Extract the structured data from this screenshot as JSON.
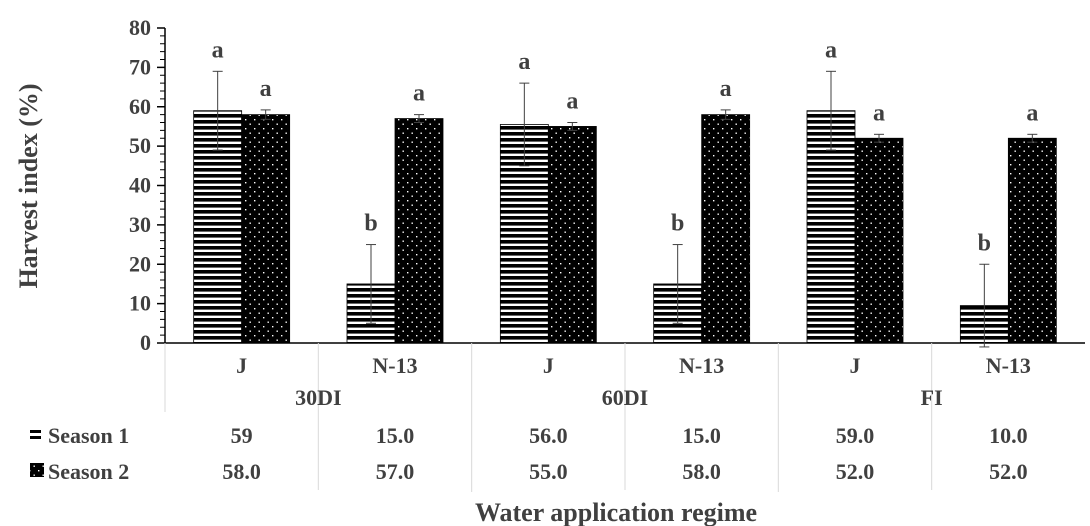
{
  "chart_data": {
    "type": "bar",
    "xlabel": "Water application regime",
    "ylabel": "Harvest index (%)",
    "ylim": [
      0,
      80
    ],
    "y_ticks": [
      0,
      10,
      20,
      30,
      40,
      50,
      60,
      70,
      80
    ],
    "groups": [
      "30DI",
      "60DI",
      "FI"
    ],
    "categories": [
      "J",
      "N-13",
      "J",
      "N-13",
      "J",
      "N-13"
    ],
    "series": [
      {
        "name": "Season 1",
        "values": [
          59,
          15,
          55.5,
          15,
          59,
          9.5
        ],
        "errors": [
          10,
          10,
          10.5,
          10,
          10,
          10.5
        ],
        "letters": [
          "a",
          "b",
          "a",
          "b",
          "a",
          "b"
        ],
        "table_values": [
          "59",
          "15.0",
          "56.0",
          "15.0",
          "59.0",
          "10.0"
        ],
        "pattern": "horizontal-stripes",
        "color": "#000000"
      },
      {
        "name": "Season 2",
        "values": [
          58,
          57,
          55,
          58,
          52,
          52
        ],
        "errors": [
          1.2,
          1,
          1,
          1.2,
          1,
          1
        ],
        "letters": [
          "a",
          "a",
          "a",
          "a",
          "a",
          "a"
        ],
        "table_values": [
          "58.0",
          "57.0",
          "55.0",
          "58.0",
          "52.0",
          "52.0"
        ],
        "pattern": "dotted",
        "color": "#000000"
      }
    ],
    "grid": false,
    "legend": "bottom-left data table"
  }
}
